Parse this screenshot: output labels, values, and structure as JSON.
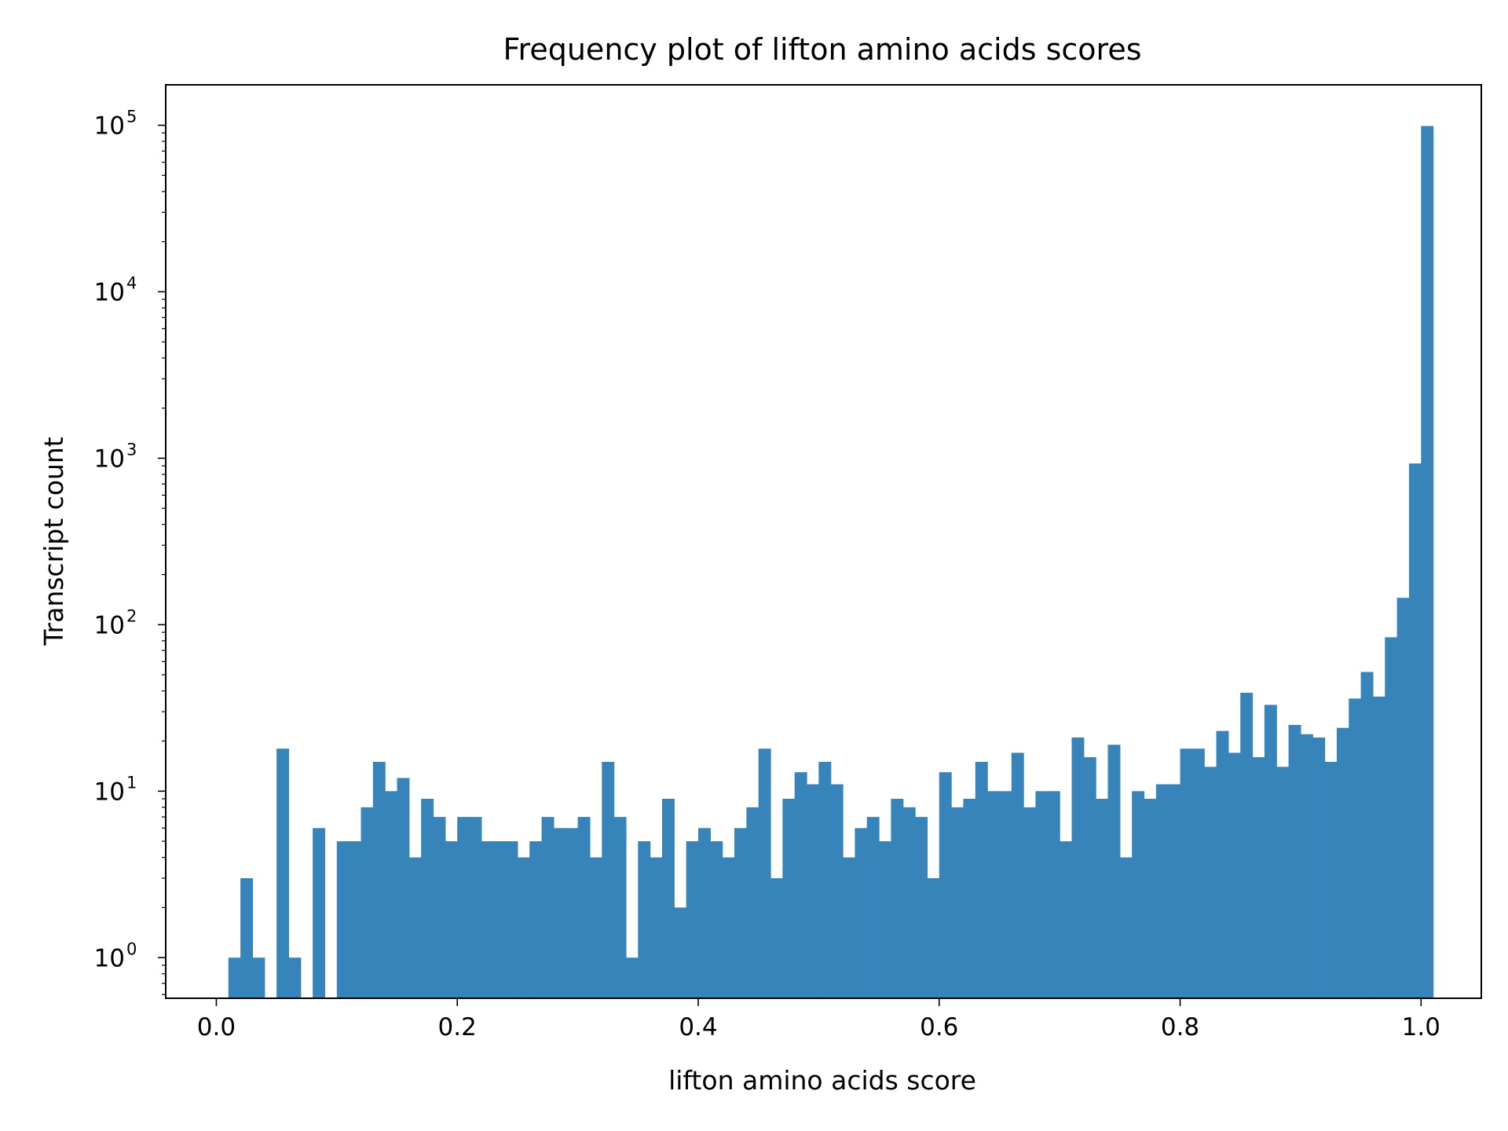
{
  "chart_data": {
    "type": "bar",
    "title": "Frequency plot of lifton amino acids scores",
    "xlabel": "lifton amino acids score",
    "ylabel": "Transcript count",
    "xlim": [
      -0.042,
      1.05
    ],
    "ylim": [
      0.57,
      175000
    ],
    "yscale": "log",
    "grid": false,
    "bar_color": "#3784bb",
    "x_ticks": [
      "0.0",
      "0.2",
      "0.4",
      "0.6",
      "0.8",
      "1.0"
    ],
    "y_ticks": [
      {
        "base": "10",
        "exp": "0",
        "value": 1
      },
      {
        "base": "10",
        "exp": "1",
        "value": 10
      },
      {
        "base": "10",
        "exp": "2",
        "value": 100
      },
      {
        "base": "10",
        "exp": "3",
        "value": 1000
      },
      {
        "base": "10",
        "exp": "4",
        "value": 10000
      },
      {
        "base": "10",
        "exp": "5",
        "value": 100000
      }
    ],
    "bin_width": 0.01,
    "bin_start": 0.0,
    "counts": [
      0,
      1,
      3,
      1,
      0,
      18,
      1,
      0,
      6,
      0,
      5,
      5,
      8,
      15,
      10,
      12,
      4,
      9,
      7,
      5,
      7,
      7,
      5,
      5,
      5,
      4,
      5,
      7,
      6,
      6,
      7,
      4,
      15,
      7,
      1,
      5,
      4,
      9,
      2,
      5,
      6,
      5,
      4,
      6,
      8,
      18,
      3,
      9,
      13,
      11,
      15,
      11,
      4,
      6,
      7,
      5,
      9,
      8,
      7,
      3,
      13,
      8,
      9,
      15,
      10,
      10,
      17,
      8,
      10,
      10,
      5,
      21,
      16,
      9,
      19,
      4,
      10,
      9,
      11,
      11,
      18,
      18,
      14,
      23,
      17,
      39,
      16,
      33,
      14,
      25,
      22,
      21,
      15,
      24,
      36,
      52,
      37,
      84,
      145,
      930,
      99000
    ]
  }
}
